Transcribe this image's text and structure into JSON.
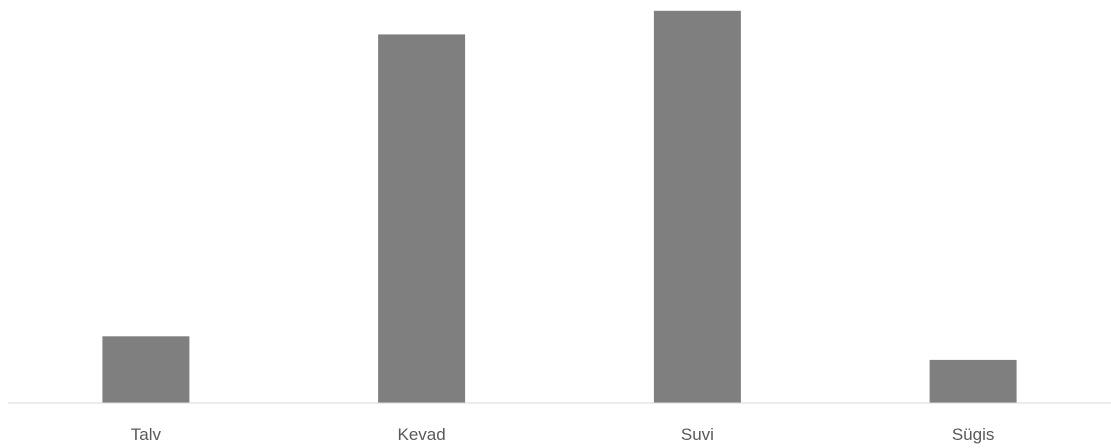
{
  "chart_data": {
    "type": "bar",
    "categories": [
      "Talv",
      "Kevad",
      "Suvi",
      "Sügis"
    ],
    "values": [
      17,
      94,
      100,
      11
    ],
    "ylim": [
      0,
      102
    ],
    "grid": false,
    "legend": "none",
    "colors": {
      "bar": "#7f7f7f",
      "axis": "#d9d9d9",
      "label": "#595959"
    }
  }
}
